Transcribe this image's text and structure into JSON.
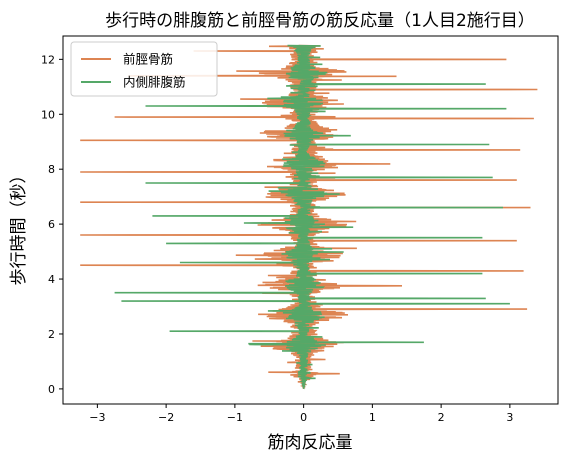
{
  "chart_data": {
    "type": "line",
    "title": "歩行時の腓腹筋と前脛骨筋の筋反応量（1人目2施行目）",
    "xlabel": "筋肉反応量",
    "ylabel": "歩行時間（秒）",
    "xlim": [
      -3.5,
      3.7
    ],
    "ylim": [
      -0.55,
      12.85
    ],
    "xticks": [
      -3,
      -2,
      -1,
      0,
      1,
      2,
      3
    ],
    "xtick_labels": [
      "−3",
      "−2",
      "−1",
      "0",
      "1",
      "2",
      "3"
    ],
    "yticks": [
      0,
      2,
      4,
      6,
      8,
      10,
      12
    ],
    "ytick_labels": [
      "0",
      "2",
      "4",
      "6",
      "8",
      "10",
      "12"
    ],
    "grid": false,
    "legend_position": "upper-left",
    "orientation": "signal amplitude on x-axis, time on y-axis",
    "series": [
      {
        "name": "前脛骨筋",
        "color": "#dd8452",
        "time_range": [
          0,
          12.5
        ],
        "x_range": [
          -3.3,
          3.4
        ],
        "spikes": [
          {
            "t": 2.9,
            "amp": 3.25
          },
          {
            "t": 4.5,
            "amp": -3.25
          },
          {
            "t": 4.3,
            "amp": 3.2
          },
          {
            "t": 5.6,
            "amp": -3.25
          },
          {
            "t": 5.4,
            "amp": 3.1
          },
          {
            "t": 6.8,
            "amp": -3.25
          },
          {
            "t": 6.6,
            "amp": 3.3
          },
          {
            "t": 7.9,
            "amp": -3.25
          },
          {
            "t": 7.6,
            "amp": 3.1
          },
          {
            "t": 9.05,
            "amp": -3.25
          },
          {
            "t": 8.7,
            "amp": 3.15
          },
          {
            "t": 9.9,
            "amp": -2.75
          },
          {
            "t": 9.85,
            "amp": 3.35
          },
          {
            "t": 10.9,
            "amp": 3.4
          },
          {
            "t": 11.4,
            "amp": -2.55
          },
          {
            "t": 12.0,
            "amp": 2.95
          },
          {
            "t": 12.3,
            "amp": -1.6
          }
        ]
      },
      {
        "name": "内側腓腹筋",
        "color": "#55a868",
        "time_range": [
          0,
          12.5
        ],
        "x_range": [
          -2.8,
          3.1
        ],
        "spikes": [
          {
            "t": 1.7,
            "amp": 1.75
          },
          {
            "t": 2.1,
            "amp": -1.95
          },
          {
            "t": 3.2,
            "amp": -2.65
          },
          {
            "t": 3.5,
            "amp": -2.75
          },
          {
            "t": 3.1,
            "amp": 3.0
          },
          {
            "t": 3.3,
            "amp": 2.65
          },
          {
            "t": 4.2,
            "amp": 2.6
          },
          {
            "t": 4.6,
            "amp": -1.8
          },
          {
            "t": 5.3,
            "amp": -2.0
          },
          {
            "t": 5.5,
            "amp": 2.6
          },
          {
            "t": 6.3,
            "amp": -2.2
          },
          {
            "t": 6.6,
            "amp": 2.9
          },
          {
            "t": 7.5,
            "amp": -2.3
          },
          {
            "t": 7.7,
            "amp": 2.75
          },
          {
            "t": 8.9,
            "amp": -2.2
          },
          {
            "t": 8.9,
            "amp": 2.7
          },
          {
            "t": 10.2,
            "amp": 2.95
          },
          {
            "t": 10.3,
            "amp": -2.3
          },
          {
            "t": 11.1,
            "amp": 2.65
          }
        ]
      }
    ]
  }
}
